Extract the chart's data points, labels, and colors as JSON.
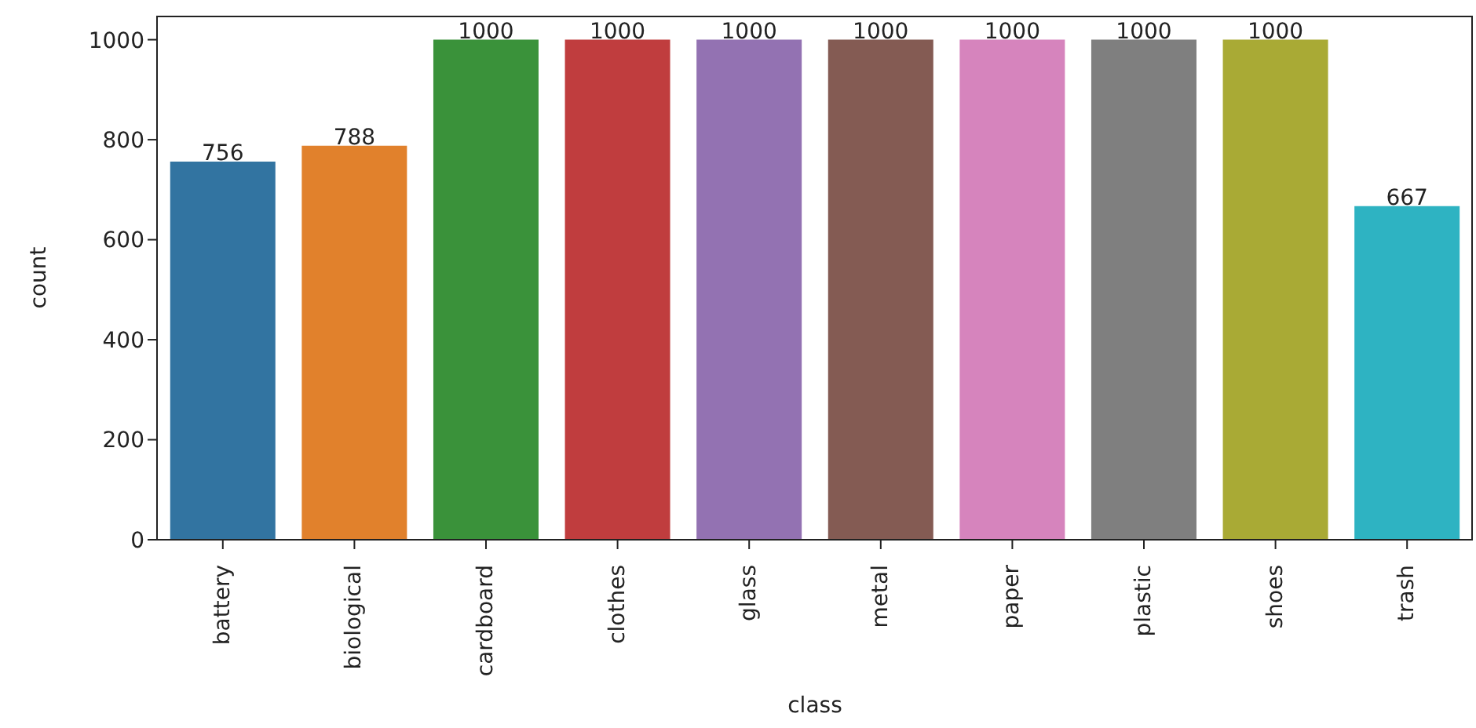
{
  "chart_data": {
    "type": "bar",
    "xlabel": "class",
    "ylabel": "count",
    "categories": [
      "battery",
      "biological",
      "cardboard",
      "clothes",
      "glass",
      "metal",
      "paper",
      "plastic",
      "shoes",
      "trash"
    ],
    "values": [
      756,
      788,
      1000,
      1000,
      1000,
      1000,
      1000,
      1000,
      1000,
      667
    ],
    "colors": [
      "#3274a1",
      "#e1812c",
      "#3a923a",
      "#c03d3e",
      "#9372b2",
      "#845b53",
      "#d684bd",
      "#7f7f7f",
      "#a9aa35",
      "#2eb3c2"
    ],
    "ylim": [
      0,
      1048
    ],
    "yticks": [
      0,
      200,
      400,
      600,
      800,
      1000
    ],
    "data_labels": true,
    "grid": false,
    "legend": false
  }
}
